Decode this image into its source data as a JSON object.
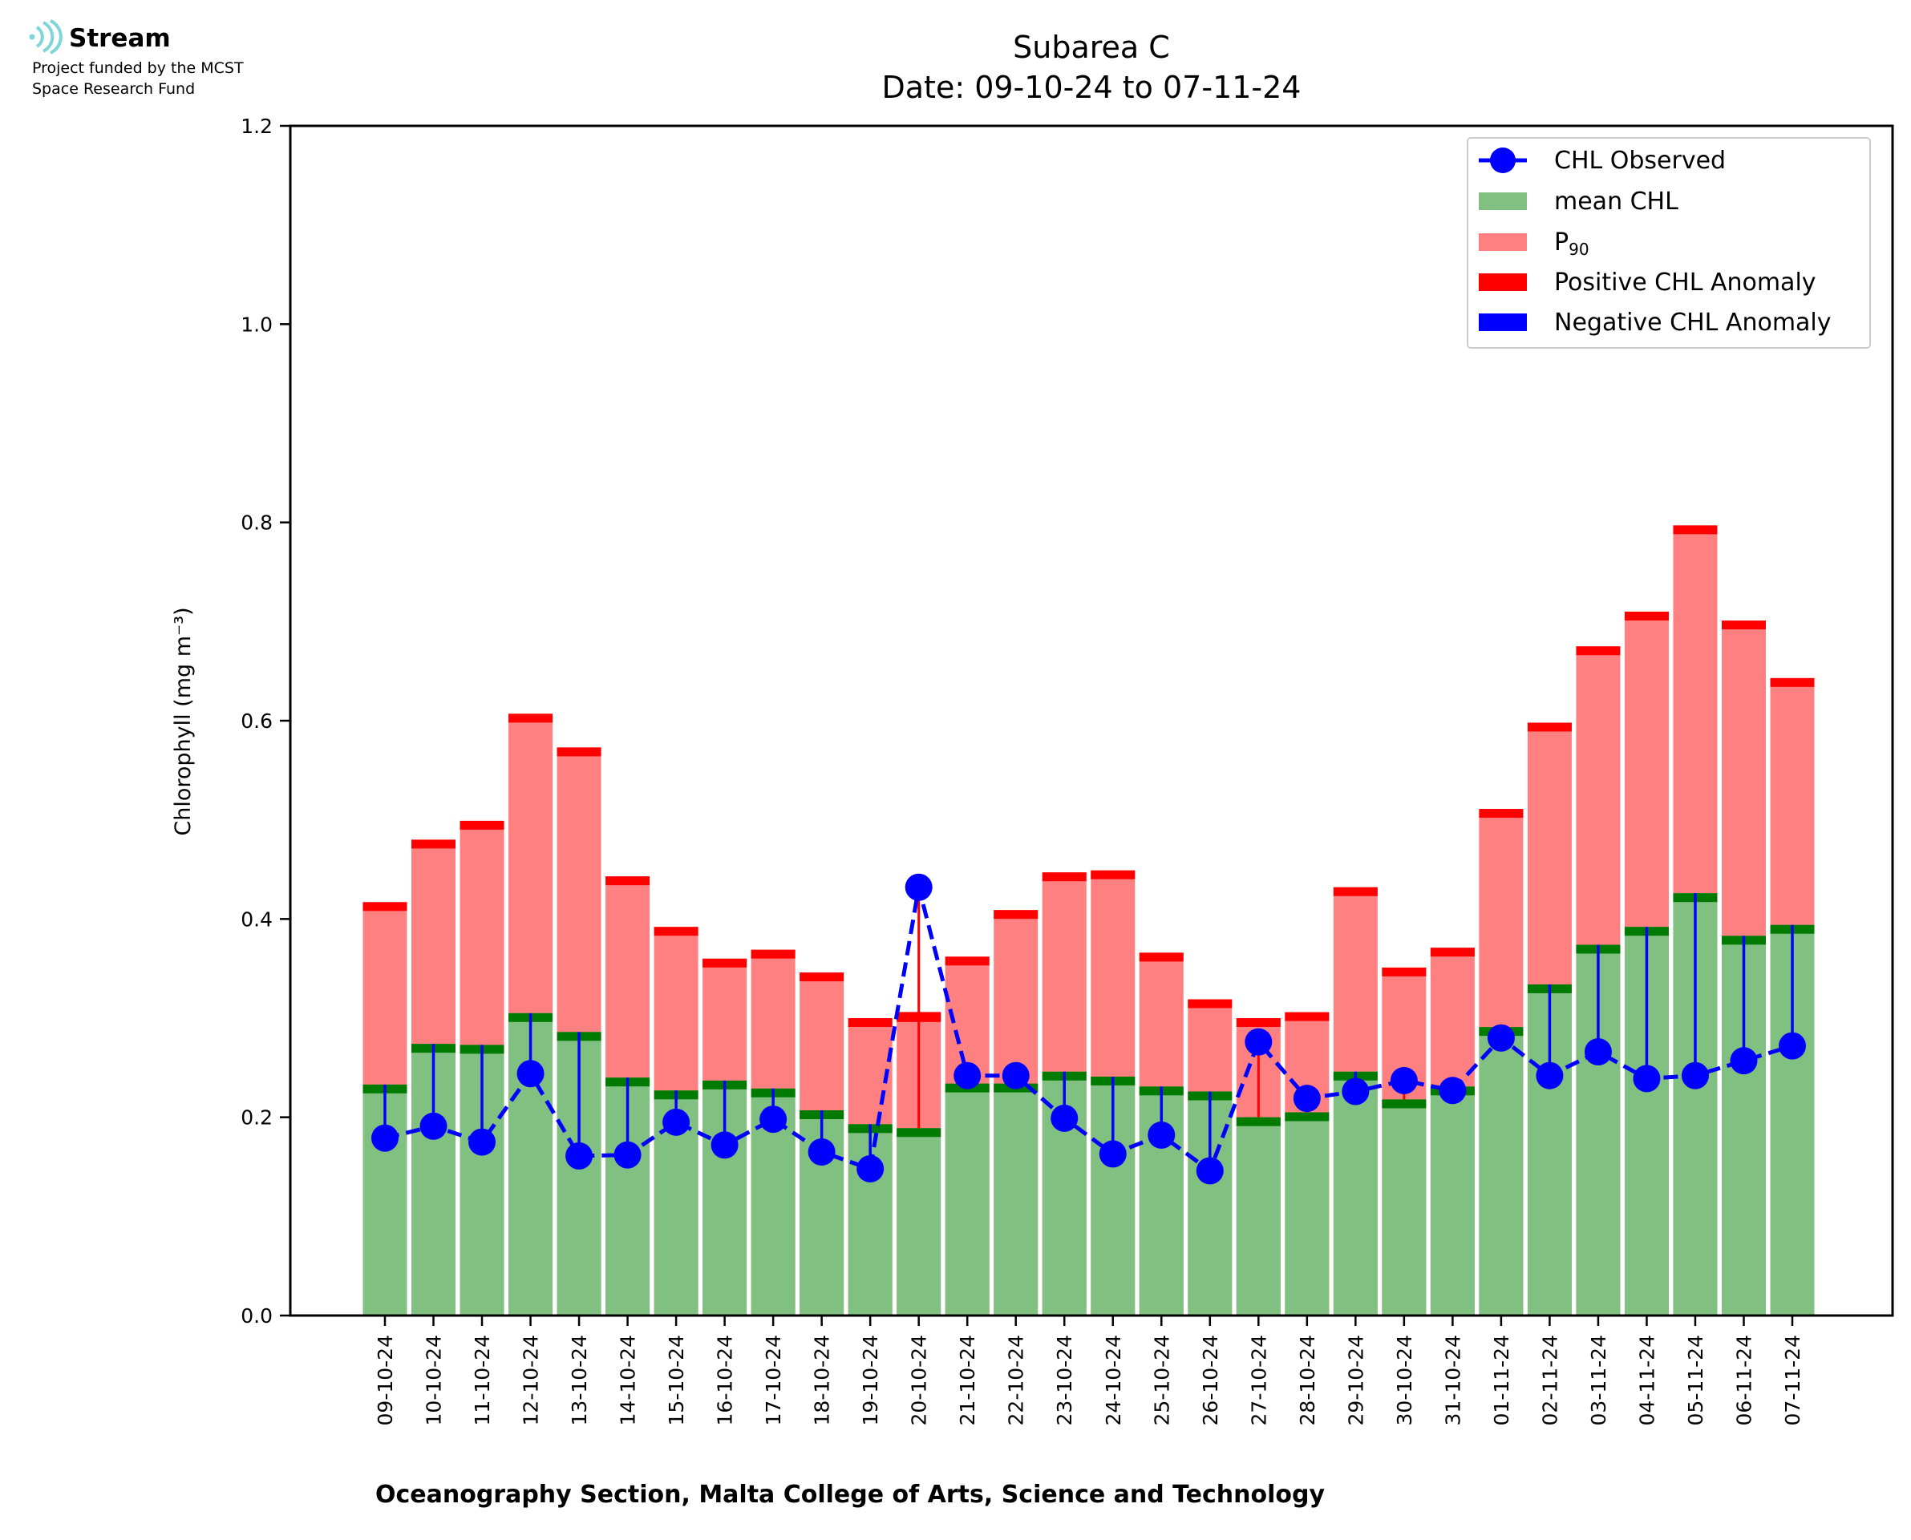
{
  "logo": {
    "name": "Stream",
    "line1": "Project funded by the MCST",
    "line2": "Space Research Fund",
    "color": "#7fd6d8"
  },
  "colors": {
    "mean": "#80c080",
    "mean_edge": "#007a00",
    "p90": "#ff8080",
    "p90_edge": "#ff0000",
    "observed": "#0000ff",
    "positive": "#ff0000",
    "negative": "#0000ff"
  },
  "chart_data": {
    "type": "bar",
    "title": "Subarea C",
    "subtitle": "Date: 09-10-24 to 07-11-24",
    "xlabel": "Oceanography Section, Malta College of Arts, Science and Technology",
    "ylabel": "Chlorophyll (mg m⁻³)",
    "ylim": [
      0,
      1.2
    ],
    "yticks": [
      "0.0",
      "0.2",
      "0.4",
      "0.6",
      "0.8",
      "1.0",
      "1.2"
    ],
    "legend_position": "top-right",
    "grid": false,
    "categories": [
      "09-10-24",
      "10-10-24",
      "11-10-24",
      "12-10-24",
      "13-10-24",
      "14-10-24",
      "15-10-24",
      "16-10-24",
      "17-10-24",
      "18-10-24",
      "19-10-24",
      "20-10-24",
      "21-10-24",
      "22-10-24",
      "23-10-24",
      "24-10-24",
      "25-10-24",
      "26-10-24",
      "27-10-24",
      "28-10-24",
      "29-10-24",
      "30-10-24",
      "31-10-24",
      "01-11-24",
      "02-11-24",
      "03-11-24",
      "04-11-24",
      "05-11-24",
      "06-11-24",
      "07-11-24"
    ],
    "series": [
      {
        "name": "CHL Observed",
        "kind": "line",
        "values": [
          0.179,
          0.191,
          0.175,
          0.244,
          0.161,
          0.162,
          0.195,
          0.172,
          0.198,
          0.165,
          0.148,
          0.432,
          0.242,
          0.242,
          0.199,
          0.163,
          0.182,
          0.146,
          0.276,
          0.219,
          0.226,
          0.237,
          0.227,
          0.28,
          0.242,
          0.266,
          0.239,
          0.242,
          0.257,
          0.272
        ]
      },
      {
        "name": "mean CHL",
        "kind": "bar",
        "values": [
          0.233,
          0.274,
          0.273,
          0.305,
          0.286,
          0.24,
          0.227,
          0.237,
          0.229,
          0.207,
          0.193,
          0.189,
          0.234,
          0.234,
          0.246,
          0.241,
          0.231,
          0.226,
          0.2,
          0.205,
          0.246,
          0.218,
          0.231,
          0.291,
          0.334,
          0.374,
          0.392,
          0.426,
          0.383,
          0.394
        ]
      },
      {
        "name": "P90",
        "kind": "bar",
        "values": [
          0.417,
          0.48,
          0.499,
          0.607,
          0.573,
          0.443,
          0.392,
          0.36,
          0.369,
          0.346,
          0.3,
          0.305,
          0.362,
          0.409,
          0.447,
          0.449,
          0.366,
          0.319,
          0.3,
          0.306,
          0.432,
          0.351,
          0.371,
          0.511,
          0.598,
          0.675,
          0.71,
          0.797,
          0.701,
          0.643
        ]
      },
      {
        "name": "Positive CHL Anomaly",
        "kind": "marker"
      },
      {
        "name": "Negative CHL Anomaly",
        "kind": "marker"
      }
    ]
  }
}
